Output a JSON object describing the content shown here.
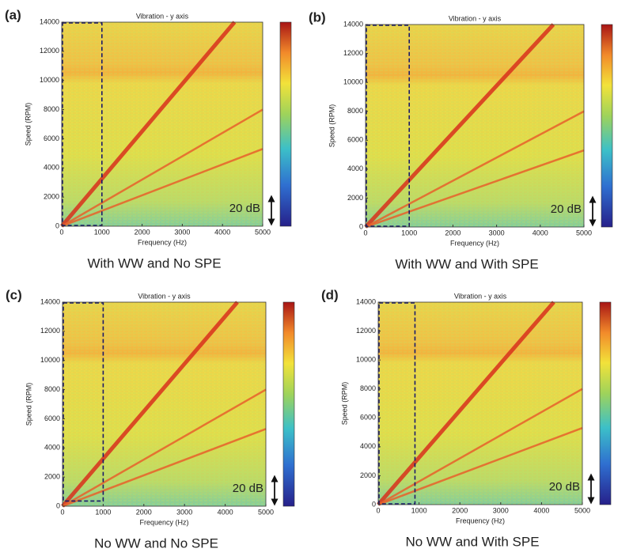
{
  "chart_data": [
    {
      "type": "spectrogram",
      "panel_label": "(a)",
      "title": "Vibration - y axis",
      "xlabel": "Frequency (Hz)",
      "ylabel": "Speed (RPM)",
      "caption": "With WW and No SPE",
      "annotation": "20 dB",
      "xlim": [
        0,
        5000
      ],
      "ylim": [
        0,
        14000
      ],
      "xticks": [
        0,
        1000,
        2000,
        3000,
        4000,
        5000
      ],
      "yticks": [
        0,
        2000,
        4000,
        6000,
        8000,
        10000,
        12000,
        14000
      ],
      "highlight": {
        "x": [
          0,
          1000
        ],
        "y": [
          0,
          14000
        ]
      },
      "ridges": [
        {
          "x": [
            0,
            4300
          ],
          "y": [
            0,
            14000
          ]
        },
        {
          "x": [
            0,
            5000
          ],
          "y": [
            0,
            8000
          ]
        },
        {
          "x": [
            0,
            5000
          ],
          "y": [
            0,
            5300
          ]
        }
      ]
    },
    {
      "type": "spectrogram",
      "panel_label": "(b)",
      "title": "Vibration - y axis",
      "xlabel": "Frequency (Hz)",
      "ylabel": "Speed (RPM)",
      "caption": "With WW and With SPE",
      "annotation": "20 dB",
      "xlim": [
        0,
        5000
      ],
      "ylim": [
        0,
        14000
      ],
      "xticks": [
        0,
        1000,
        2000,
        3000,
        4000,
        5000
      ],
      "yticks": [
        0,
        2000,
        4000,
        6000,
        8000,
        10000,
        12000,
        14000
      ],
      "highlight": {
        "x": [
          0,
          1000
        ],
        "y": [
          0,
          14000
        ]
      },
      "ridges": [
        {
          "x": [
            0,
            4300
          ],
          "y": [
            0,
            14000
          ]
        },
        {
          "x": [
            0,
            5000
          ],
          "y": [
            0,
            8000
          ]
        },
        {
          "x": [
            0,
            5000
          ],
          "y": [
            0,
            5300
          ]
        }
      ]
    },
    {
      "type": "spectrogram",
      "panel_label": "(c)",
      "title": "Vibration - y axis",
      "xlabel": "Frequency (Hz)",
      "ylabel": "Speed (RPM)",
      "caption": "No WW and No SPE",
      "annotation": "20 dB",
      "xlim": [
        0,
        5000
      ],
      "ylim": [
        0,
        14000
      ],
      "xticks": [
        0,
        1000,
        2000,
        3000,
        4000,
        5000
      ],
      "yticks": [
        0,
        2000,
        4000,
        6000,
        8000,
        10000,
        12000,
        14000
      ],
      "highlight": {
        "x": [
          0,
          1000
        ],
        "y": [
          300,
          14000
        ]
      },
      "ridges": [
        {
          "x": [
            0,
            4300
          ],
          "y": [
            0,
            14000
          ]
        },
        {
          "x": [
            0,
            5000
          ],
          "y": [
            0,
            8000
          ]
        },
        {
          "x": [
            0,
            5000
          ],
          "y": [
            0,
            5300
          ]
        }
      ]
    },
    {
      "type": "spectrogram",
      "panel_label": "(d)",
      "title": "Vibration - y axis",
      "xlabel": "Frequency (Hz)",
      "ylabel": "Speed (RPM)",
      "caption": "No WW and With SPE",
      "annotation": "20 dB",
      "xlim": [
        0,
        5000
      ],
      "ylim": [
        0,
        14000
      ],
      "xticks": [
        0,
        1000,
        2000,
        3000,
        4000,
        5000
      ],
      "yticks": [
        0,
        2000,
        4000,
        6000,
        8000,
        10000,
        12000,
        14000
      ],
      "highlight": {
        "x": [
          0,
          900
        ],
        "y": [
          0,
          14000
        ]
      },
      "ridges": [
        {
          "x": [
            0,
            4300
          ],
          "y": [
            0,
            14000
          ]
        },
        {
          "x": [
            0,
            5000
          ],
          "y": [
            0,
            8000
          ]
        },
        {
          "x": [
            0,
            5000
          ],
          "y": [
            0,
            5300
          ]
        }
      ]
    }
  ]
}
